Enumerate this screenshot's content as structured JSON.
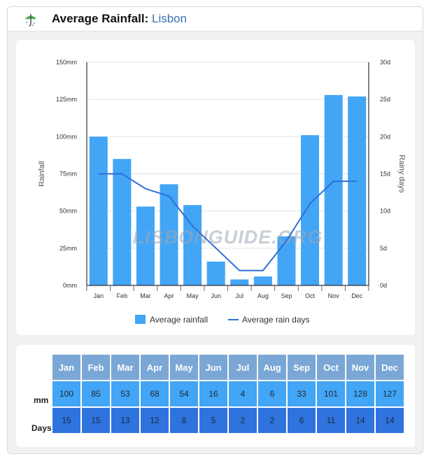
{
  "header": {
    "title": "Average Rainfall:",
    "city": "Lisbon",
    "icon": "umbrella-icon"
  },
  "chart_data": {
    "type": "bar",
    "categories": [
      "Jan",
      "Feb",
      "Mar",
      "Apr",
      "May",
      "Jun",
      "Jul",
      "Aug",
      "Sep",
      "Oct",
      "Nov",
      "Dec"
    ],
    "series": [
      {
        "name": "Average rainfall",
        "type": "bar",
        "axis": "left",
        "color": "#42a5f5",
        "values": [
          100,
          85,
          53,
          68,
          54,
          16,
          4,
          6,
          33,
          101,
          128,
          127
        ]
      },
      {
        "name": "Average rain days",
        "type": "line",
        "axis": "right",
        "color": "#2f6fd8",
        "values": [
          15,
          15,
          13,
          12,
          8,
          5,
          2,
          2,
          6,
          11,
          14,
          14
        ]
      }
    ],
    "ylabel": "Rainfall",
    "y2label": "Rainy days",
    "ylim": [
      0,
      150
    ],
    "y2lim": [
      0,
      30
    ],
    "yticks": [
      "0mm",
      "25mm",
      "50mm",
      "75mm",
      "100mm",
      "125mm",
      "150mm"
    ],
    "y2ticks": [
      "0d",
      "5d",
      "10d",
      "15d",
      "20d",
      "25d",
      "30d"
    ],
    "grid": true,
    "legend": "bottom-center",
    "watermark": "LISBONGUIDE.ORG"
  },
  "table": {
    "months": [
      "Jan",
      "Feb",
      "Mar",
      "Apr",
      "May",
      "Jun",
      "Jul",
      "Aug",
      "Sep",
      "Oct",
      "Nov",
      "Dec"
    ],
    "mm_label": "mm",
    "days_label": "Days",
    "mm": [
      "100",
      "85",
      "53",
      "68",
      "54",
      "16",
      "4",
      "6",
      "33",
      "101",
      "128",
      "127"
    ],
    "days": [
      "15",
      "15",
      "13",
      "12",
      "8",
      "5",
      "2",
      "2",
      "6",
      "11",
      "14",
      "14"
    ]
  }
}
